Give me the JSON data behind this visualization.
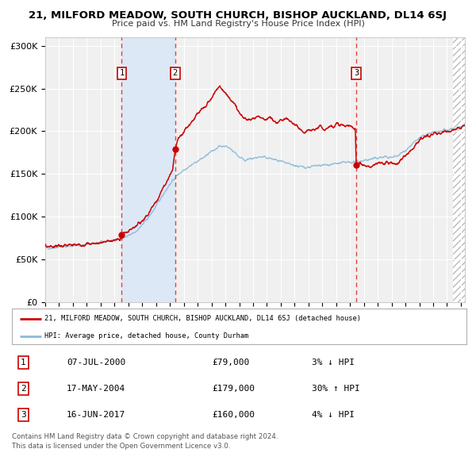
{
  "title": "21, MILFORD MEADOW, SOUTH CHURCH, BISHOP AUCKLAND, DL14 6SJ",
  "subtitle": "Price paid vs. HM Land Registry's House Price Index (HPI)",
  "x_start": 1995.0,
  "x_end": 2025.3,
  "y_min": 0,
  "y_max": 310000,
  "yticks": [
    0,
    50000,
    100000,
    150000,
    200000,
    250000,
    300000
  ],
  "ytick_labels": [
    "£0",
    "£50K",
    "£100K",
    "£150K",
    "£200K",
    "£250K",
    "£300K"
  ],
  "xtick_years": [
    1995,
    1996,
    1997,
    1998,
    1999,
    2000,
    2001,
    2002,
    2003,
    2004,
    2005,
    2006,
    2007,
    2008,
    2009,
    2010,
    2011,
    2012,
    2013,
    2014,
    2015,
    2016,
    2017,
    2018,
    2019,
    2020,
    2021,
    2022,
    2023,
    2024,
    2025
  ],
  "purchase_color": "#cc0000",
  "hpi_color": "#88bbdd",
  "shaded_region_color": "#dce8f5",
  "dashed_line_color": "#dd2222",
  "hatch_start": 2024.42,
  "shaded_p1": 2000.52,
  "shaded_p2": 2004.38,
  "purchases": [
    {
      "label": "1",
      "date_dec": 2000.52,
      "price": 79000
    },
    {
      "label": "2",
      "date_dec": 2004.38,
      "price": 179000
    },
    {
      "label": "3",
      "date_dec": 2017.45,
      "price": 160000
    }
  ],
  "table_rows": [
    {
      "num": "1",
      "date": "07-JUL-2000",
      "price": "£79,000",
      "hpi_change": "3% ↓ HPI"
    },
    {
      "num": "2",
      "date": "17-MAY-2004",
      "price": "£179,000",
      "hpi_change": "30% ↑ HPI"
    },
    {
      "num": "3",
      "date": "16-JUN-2017",
      "price": "£160,000",
      "hpi_change": "4% ↓ HPI"
    }
  ],
  "legend_line1": "21, MILFORD MEADOW, SOUTH CHURCH, BISHOP AUCKLAND, DL14 6SJ (detached house)",
  "legend_line2": "HPI: Average price, detached house, County Durham",
  "footer1": "Contains HM Land Registry data © Crown copyright and database right 2024.",
  "footer2": "This data is licensed under the Open Government Licence v3.0.",
  "bg_color": "#ffffff",
  "plot_bg_color": "#f0f0f0",
  "label_box_color": "#cc0000",
  "grid_color": "#ffffff",
  "spine_color": "#cccccc"
}
